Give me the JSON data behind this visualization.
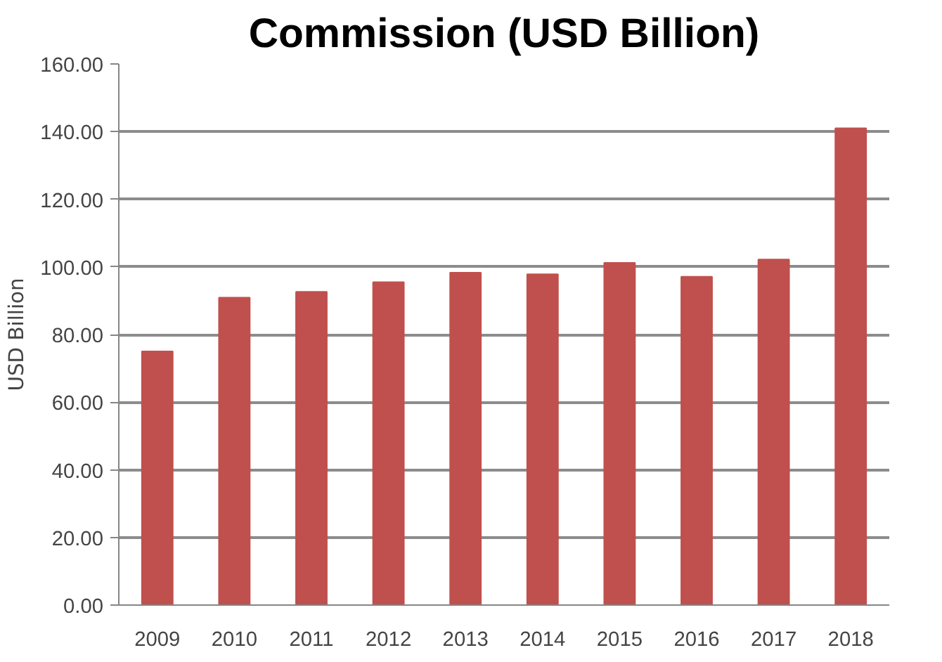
{
  "chart_data": {
    "type": "bar",
    "title": "Commission (USD Billion)",
    "ylabel": "USD Billion",
    "categories": [
      "2009",
      "2010",
      "2011",
      "2012",
      "2013",
      "2014",
      "2015",
      "2016",
      "2017",
      "2018"
    ],
    "values": [
      75.0,
      90.9,
      92.6,
      95.5,
      98.3,
      97.8,
      101.2,
      97.1,
      102.2,
      141.0
    ],
    "color": "#c0504d",
    "ylim": [
      0,
      160
    ],
    "yticks": [
      {
        "value": 0,
        "label": "0.00"
      },
      {
        "value": 20,
        "label": "20.00"
      },
      {
        "value": 40,
        "label": "40.00"
      },
      {
        "value": 60,
        "label": "60.00"
      },
      {
        "value": 80,
        "label": "80.00"
      },
      {
        "value": 100,
        "label": "100.00"
      },
      {
        "value": 120,
        "label": "120.00"
      },
      {
        "value": 140,
        "label": "140.00"
      },
      {
        "value": 160,
        "label": "160.00"
      }
    ],
    "grid": "y"
  }
}
